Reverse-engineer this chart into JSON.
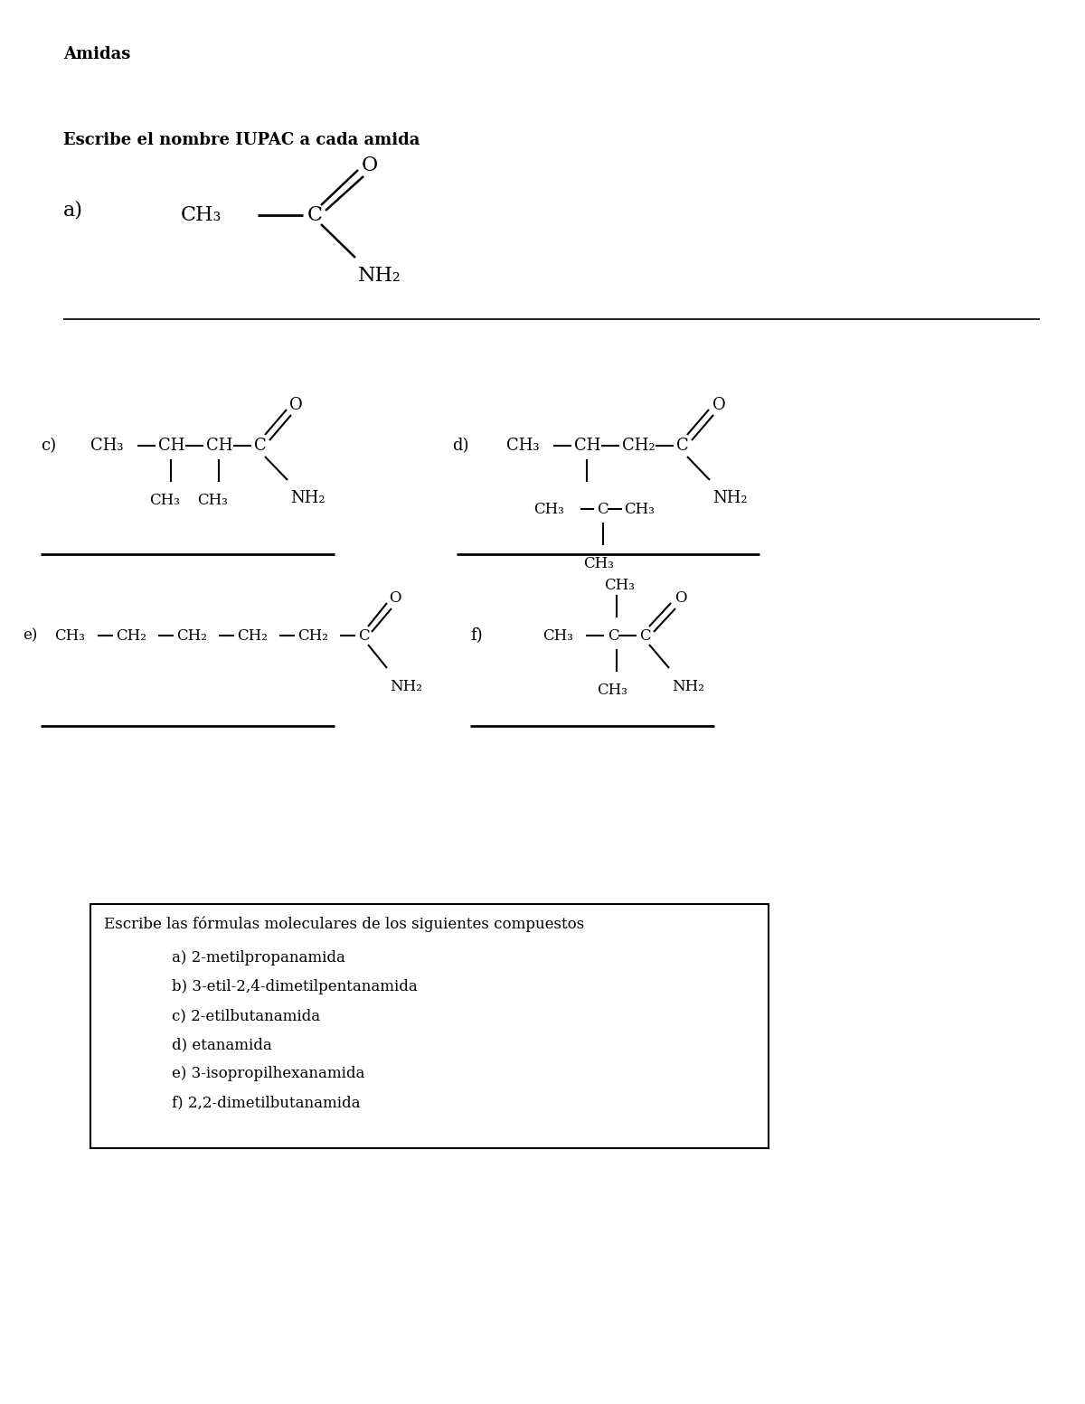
{
  "title": "Amidas",
  "section1_label": "Escribe el nombre IUPAC a cada amida",
  "background_color": "#ffffff",
  "box_title": "Escribe las fórmulas moleculares de los siguientes compuestos",
  "box_items": [
    "a) 2-metilpropanamida",
    "b) 3-etil-2,4-dimetilpentanamida",
    "c) 2-etilbutanamida",
    "d) etanamida",
    "e) 3-isopropilhexanamida",
    "f) 2,2-dimetilbutanamida"
  ]
}
